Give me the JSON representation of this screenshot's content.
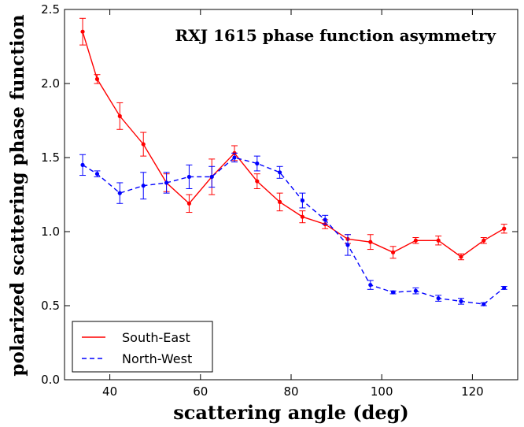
{
  "chart_data": {
    "type": "line",
    "title": "RXJ 1615 phase function asymmetry",
    "xlabel": "scattering angle (deg)",
    "ylabel": "polarized scattering phase function",
    "xlim": [
      30,
      130
    ],
    "ylim": [
      0.0,
      2.5
    ],
    "xticks": [
      40,
      60,
      80,
      100,
      120
    ],
    "xtick_labels": [
      "40",
      "60",
      "80",
      "100",
      "120"
    ],
    "yticks": [
      0.0,
      0.5,
      1.0,
      1.5,
      2.0,
      2.5
    ],
    "ytick_labels": [
      "0.0",
      "0.5",
      "1.0",
      "1.5",
      "2.0",
      "2.5"
    ],
    "grid": false,
    "legend_position": "bottom-left",
    "series": [
      {
        "name": "South-East",
        "color": "#ff0000",
        "linestyle": "solid",
        "points": [
          {
            "x": 34.0,
            "y": 2.35,
            "err": 0.09
          },
          {
            "x": 37.2,
            "y": 2.03,
            "err": 0.03
          },
          {
            "x": 42.2,
            "y": 1.78,
            "err": 0.09
          },
          {
            "x": 47.4,
            "y": 1.59,
            "err": 0.08
          },
          {
            "x": 52.5,
            "y": 1.33,
            "err": 0.06
          },
          {
            "x": 57.5,
            "y": 1.19,
            "err": 0.06
          },
          {
            "x": 62.5,
            "y": 1.37,
            "err": 0.12
          },
          {
            "x": 67.5,
            "y": 1.53,
            "err": 0.05
          },
          {
            "x": 72.5,
            "y": 1.34,
            "err": 0.05
          },
          {
            "x": 77.5,
            "y": 1.2,
            "err": 0.06
          },
          {
            "x": 82.5,
            "y": 1.1,
            "err": 0.04
          },
          {
            "x": 87.5,
            "y": 1.05,
            "err": 0.03
          },
          {
            "x": 92.5,
            "y": 0.95,
            "err": 0.03
          },
          {
            "x": 97.5,
            "y": 0.93,
            "err": 0.05
          },
          {
            "x": 102.5,
            "y": 0.86,
            "err": 0.04
          },
          {
            "x": 107.5,
            "y": 0.94,
            "err": 0.02
          },
          {
            "x": 112.5,
            "y": 0.94,
            "err": 0.03
          },
          {
            "x": 117.5,
            "y": 0.83,
            "err": 0.02
          },
          {
            "x": 122.5,
            "y": 0.94,
            "err": 0.02
          },
          {
            "x": 127.0,
            "y": 1.02,
            "err": 0.03
          }
        ]
      },
      {
        "name": "North-West",
        "color": "#0000ff",
        "linestyle": "dashed",
        "points": [
          {
            "x": 34.0,
            "y": 1.45,
            "err": 0.07
          },
          {
            "x": 37.2,
            "y": 1.39,
            "err": 0.02
          },
          {
            "x": 42.2,
            "y": 1.26,
            "err": 0.07
          },
          {
            "x": 47.4,
            "y": 1.31,
            "err": 0.09
          },
          {
            "x": 52.5,
            "y": 1.33,
            "err": 0.07
          },
          {
            "x": 57.5,
            "y": 1.37,
            "err": 0.08
          },
          {
            "x": 62.5,
            "y": 1.37,
            "err": 0.07
          },
          {
            "x": 67.5,
            "y": 1.5,
            "err": 0.03
          },
          {
            "x": 72.5,
            "y": 1.46,
            "err": 0.05
          },
          {
            "x": 77.5,
            "y": 1.4,
            "err": 0.04
          },
          {
            "x": 82.5,
            "y": 1.21,
            "err": 0.05
          },
          {
            "x": 87.5,
            "y": 1.08,
            "err": 0.03
          },
          {
            "x": 92.5,
            "y": 0.91,
            "err": 0.07
          },
          {
            "x": 97.5,
            "y": 0.64,
            "err": 0.03
          },
          {
            "x": 102.5,
            "y": 0.59,
            "err": 0.01
          },
          {
            "x": 107.5,
            "y": 0.6,
            "err": 0.02
          },
          {
            "x": 112.5,
            "y": 0.55,
            "err": 0.02
          },
          {
            "x": 117.5,
            "y": 0.53,
            "err": 0.02
          },
          {
            "x": 122.5,
            "y": 0.51,
            "err": 0.01
          },
          {
            "x": 127.0,
            "y": 0.62,
            "err": 0.01
          }
        ]
      }
    ]
  }
}
